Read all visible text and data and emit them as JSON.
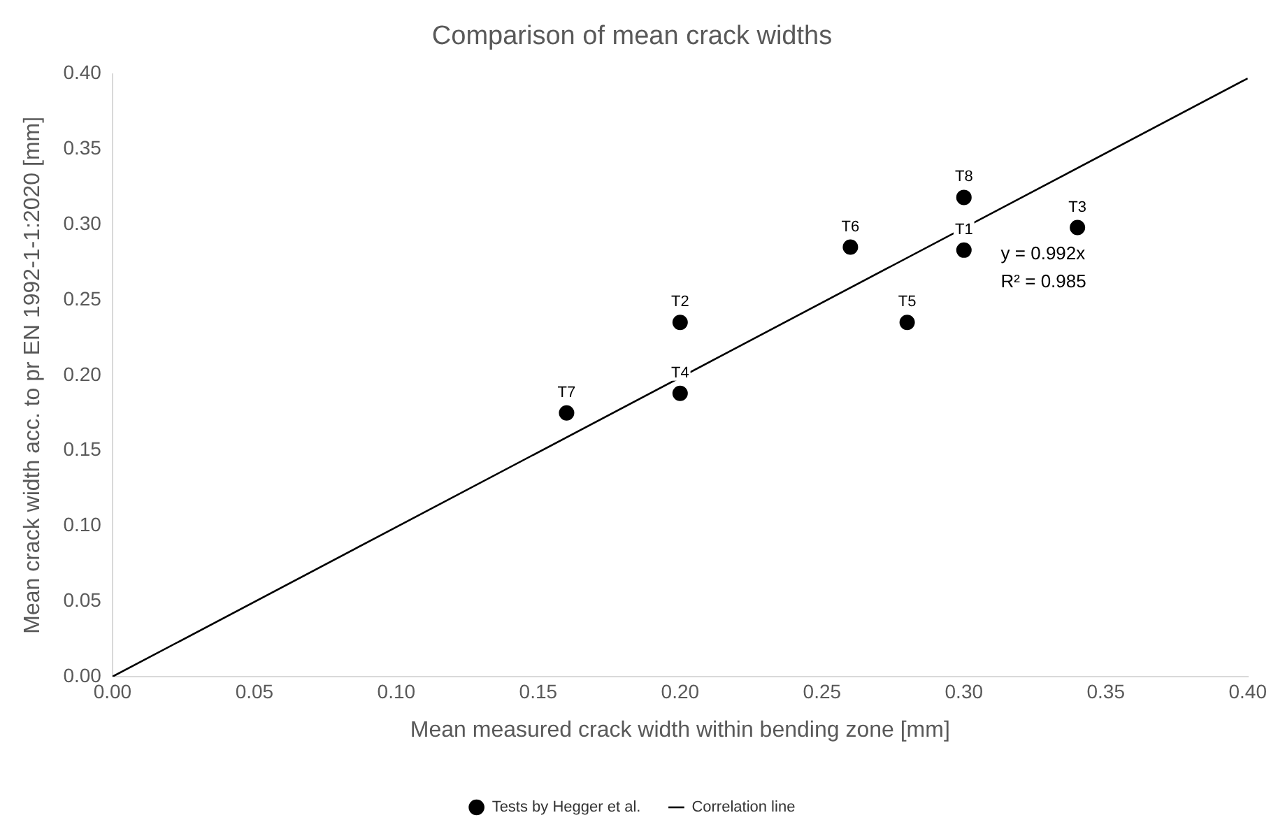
{
  "chart_data": {
    "type": "scatter",
    "title": "Comparison of mean crack widths",
    "xlabel": "Mean measured crack width within bending zone [mm]",
    "ylabel": "Mean crack width acc. to pr EN 1992-1-1:2020 [mm]",
    "xlim": [
      0,
      0.4
    ],
    "xticks": [
      {
        "value": 0,
        "label": "0.00"
      },
      {
        "value": 0.05,
        "label": "0.05"
      },
      {
        "value": 0.1,
        "label": "0.10"
      },
      {
        "value": 0.15,
        "label": "0.15"
      },
      {
        "value": 0.2,
        "label": "0.20"
      },
      {
        "value": 0.25,
        "label": "0.25"
      },
      {
        "value": 0.3,
        "label": "0.30"
      },
      {
        "value": 0.35,
        "label": "0.35"
      },
      {
        "value": 0.4,
        "label": "0.40"
      }
    ],
    "ylim": [
      0,
      0.4
    ],
    "yticks": [
      {
        "value": 0,
        "label": "0.00"
      },
      {
        "value": 0.05,
        "label": "0.05"
      },
      {
        "value": 0.1,
        "label": "0.10"
      },
      {
        "value": 0.15,
        "label": "0.15"
      },
      {
        "value": 0.2,
        "label": "0.20"
      },
      {
        "value": 0.25,
        "label": "0.25"
      },
      {
        "value": 0.3,
        "label": "0.30"
      },
      {
        "value": 0.35,
        "label": "0.35"
      },
      {
        "value": 0.4,
        "label": "0.40"
      }
    ],
    "series": [
      {
        "name": "Tests by Hegger et al.",
        "color": "#000000",
        "marker": "circle",
        "x": [
          0.16,
          0.2,
          0.2,
          0.26,
          0.28,
          0.3,
          0.3,
          0.34
        ],
        "values": [
          0.175,
          0.235,
          0.188,
          0.285,
          0.235,
          0.283,
          0.318,
          0.298
        ],
        "value_labels": [
          "T7",
          "T2",
          "T4",
          "T6",
          "T5",
          "T1",
          "T8",
          "T3"
        ]
      },
      {
        "name": "Correlation line",
        "type": "line",
        "color": "#000000",
        "marker": "none",
        "line_style": "solid",
        "x": [
          0,
          0.4
        ],
        "values": [
          0,
          0.397
        ]
      }
    ],
    "annotations": [
      "y = 0.992x",
      "R² = 0.985"
    ],
    "grid": false,
    "legend": "bottom"
  }
}
